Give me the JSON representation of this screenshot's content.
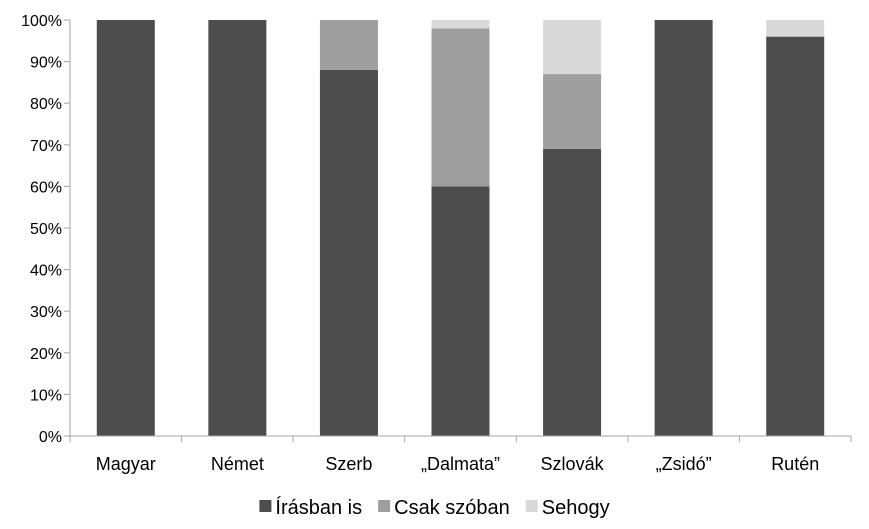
{
  "chart_data": {
    "type": "bar",
    "stacked": true,
    "percent": true,
    "categories": [
      "Magyar",
      "Német",
      "Szerb",
      "„Dalmata”",
      "Szlovák",
      "„Zsidó”",
      "Rutén"
    ],
    "series": [
      {
        "name": "Írásban is",
        "color": "#4d4d4d",
        "values": [
          100,
          100,
          88,
          60,
          69,
          100,
          96
        ]
      },
      {
        "name": "Csak szóban",
        "color": "#9e9e9e",
        "values": [
          0,
          0,
          12,
          38,
          18,
          0,
          0
        ]
      },
      {
        "name": "Sehogy",
        "color": "#d9d9d9",
        "values": [
          0,
          0,
          0,
          2,
          13,
          0,
          4
        ]
      }
    ],
    "ylim": [
      0,
      100
    ],
    "yticks": [
      "0%",
      "10%",
      "20%",
      "30%",
      "40%",
      "50%",
      "60%",
      "70%",
      "80%",
      "90%",
      "100%"
    ],
    "grid": false,
    "legend_position": "bottom",
    "axis_color": "#a6a6a6"
  }
}
